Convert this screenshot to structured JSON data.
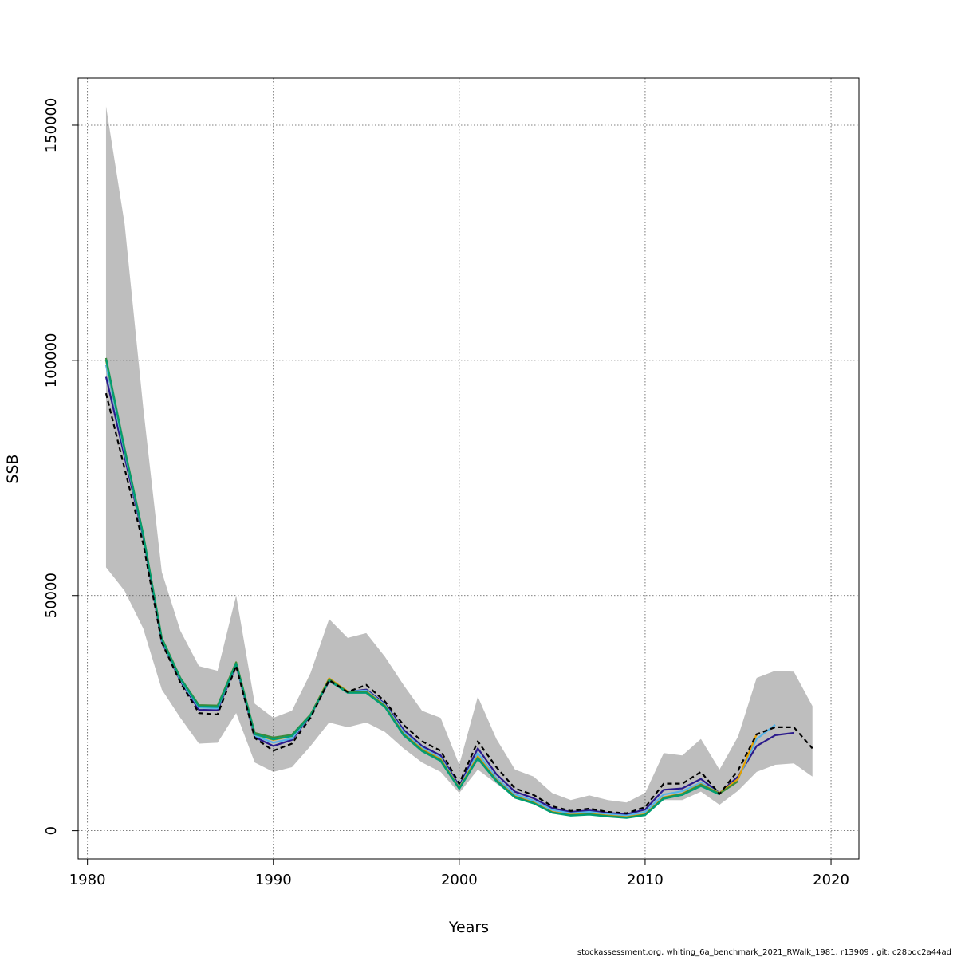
{
  "chart_data": {
    "type": "line",
    "title": "",
    "xlabel": "Years",
    "ylabel": "SSB",
    "xlim": [
      1979.5,
      2021.5
    ],
    "ylim": [
      -6000,
      160000
    ],
    "grid": true,
    "x_ticks": [
      1980,
      1990,
      2000,
      2010,
      2020
    ],
    "y_ticks": [
      0,
      50000,
      100000,
      150000
    ],
    "x_tick_labels": [
      "1980",
      "1990",
      "2000",
      "2010",
      "2020"
    ],
    "y_tick_labels": [
      "0",
      "50000",
      "100000",
      "150000"
    ],
    "footer": "stockassessment.org, whiting_6a_benchmark_2021_RWalk_1981, r13909 , git: c28bdc2a44ad",
    "colors": {
      "band": "#bebebe",
      "estimate": "#000000",
      "grid": "#555555",
      "retro": [
        "#2b1a8c",
        "#56b4e9",
        "#e69f00",
        "#3c8c3c",
        "#009e73"
      ]
    },
    "confidence_band": {
      "x": [
        1981,
        1982,
        1983,
        1984,
        1985,
        1986,
        1987,
        1988,
        1989,
        1990,
        1991,
        1992,
        1993,
        1994,
        1995,
        1996,
        1997,
        1998,
        1999,
        2000,
        2001,
        2002,
        2003,
        2004,
        2005,
        2006,
        2007,
        2008,
        2009,
        2010,
        2011,
        2012,
        2013,
        2014,
        2015,
        2016,
        2017,
        2018,
        2019
      ],
      "lower": [
        56000,
        51000,
        43000,
        30000,
        24000,
        18500,
        18700,
        25000,
        14500,
        12500,
        13500,
        18000,
        23000,
        22000,
        23000,
        21000,
        17500,
        14500,
        12500,
        8000,
        13000,
        10000,
        7000,
        6000,
        4500,
        3800,
        4000,
        3500,
        3200,
        3500,
        6500,
        6500,
        8300,
        5500,
        8500,
        12500,
        14000,
        14300,
        11500
      ],
      "upper": [
        154000,
        129000,
        90000,
        55000,
        42500,
        35000,
        34000,
        50000,
        27000,
        24000,
        25500,
        33500,
        45000,
        41000,
        42000,
        37000,
        31000,
        25500,
        24000,
        14000,
        28500,
        19500,
        13000,
        11500,
        8000,
        6500,
        7500,
        6500,
        6000,
        8000,
        16500,
        16000,
        19500,
        13000,
        20000,
        32500,
        34000,
        33800,
        26500
      ]
    },
    "series": [
      {
        "x": [
          1981,
          1982,
          1983,
          1984,
          1985,
          1986,
          1987,
          1988,
          1989,
          1990,
          1991,
          1992,
          1993,
          1994,
          1995,
          1996,
          1997,
          1998,
          1999,
          2000,
          2001,
          2002,
          2003,
          2004,
          2005,
          2006,
          2007,
          2008,
          2009,
          2010,
          2011,
          2012,
          2013,
          2014,
          2015,
          2016,
          2017,
          2018,
          2019
        ],
        "values": [
          93000,
          77000,
          61000,
          40000,
          31500,
          25000,
          24700,
          35000,
          19700,
          17000,
          18500,
          24000,
          32000,
          29500,
          31000,
          27500,
          22500,
          19000,
          17000,
          10000,
          19000,
          13500,
          9000,
          7600,
          5200,
          4200,
          4700,
          4000,
          3700,
          5000,
          10000,
          10000,
          12500,
          7800,
          12800,
          20500,
          22000,
          22000,
          17500
        ],
        "dash": "dashed",
        "color": "#000000"
      },
      {
        "x": [
          1981,
          1982,
          1983,
          1984,
          1985,
          1986,
          1987,
          1988,
          1989,
          1990,
          1991,
          1992,
          1993,
          1994,
          1995,
          1996,
          1997,
          1998,
          1999,
          2000,
          2001,
          2002,
          2003,
          2004,
          2005,
          2006,
          2007,
          2008,
          2009,
          2010,
          2011,
          2012,
          2013,
          2014,
          2015,
          2016,
          2017,
          2018
        ],
        "values": [
          96500,
          79500,
          62500,
          40200,
          31800,
          25700,
          25600,
          35200,
          19900,
          18000,
          19300,
          24500,
          31800,
          29500,
          30000,
          27000,
          21500,
          18000,
          16000,
          9500,
          17500,
          12000,
          8300,
          6900,
          4800,
          4000,
          4300,
          3800,
          3500,
          4500,
          8700,
          9000,
          11000,
          8000,
          11500,
          18000,
          20300,
          20800
        ],
        "dash": "solid",
        "color": "#2b1a8c"
      },
      {
        "x": [
          1981,
          1982,
          1983,
          1984,
          1985,
          1986,
          1987,
          1988,
          1989,
          1990,
          1991,
          1992,
          1993,
          1994,
          1995,
          1996,
          1997,
          1998,
          1999,
          2000,
          2001,
          2002,
          2003,
          2004,
          2005,
          2006,
          2007,
          2008,
          2009,
          2010,
          2011,
          2012,
          2013,
          2014,
          2015,
          2016,
          2017
        ],
        "values": [
          99000,
          80500,
          62800,
          40500,
          32000,
          26200,
          26000,
          35400,
          20200,
          18700,
          19600,
          24600,
          32000,
          29600,
          29800,
          26800,
          21000,
          17600,
          15500,
          9200,
          16500,
          11200,
          7700,
          6400,
          4400,
          3700,
          4000,
          3500,
          3200,
          4000,
          7700,
          8400,
          10200,
          8000,
          11000,
          19500,
          22500
        ],
        "dash": "solid",
        "color": "#56b4e9"
      },
      {
        "x": [
          1981,
          1982,
          1983,
          1984,
          1985,
          1986,
          1987,
          1988,
          1989,
          1990,
          1991,
          1992,
          1993,
          1994,
          1995,
          1996,
          1997,
          1998,
          1999,
          2000,
          2001,
          2002,
          2003,
          2004,
          2005,
          2006,
          2007,
          2008,
          2009,
          2010,
          2011,
          2012,
          2013,
          2014,
          2015,
          2016
        ],
        "values": [
          100000,
          81000,
          63000,
          40800,
          32300,
          26500,
          26400,
          35800,
          20500,
          19300,
          20100,
          24600,
          32400,
          29600,
          29600,
          26600,
          20600,
          17300,
          15200,
          9100,
          15800,
          10800,
          7300,
          6000,
          4000,
          3400,
          3600,
          3200,
          2900,
          3500,
          7100,
          7900,
          9900,
          8000,
          11000,
          20500
        ],
        "dash": "solid",
        "color": "#e69f00"
      },
      {
        "x": [
          1981,
          1982,
          1983,
          1984,
          1985,
          1986,
          1987,
          1988,
          1989,
          1990,
          1991,
          1992,
          1993,
          1994,
          1995,
          1996,
          1997,
          1998,
          1999,
          2000,
          2001,
          2002,
          2003,
          2004,
          2005,
          2006,
          2007,
          2008,
          2009,
          2010,
          2011,
          2012,
          2013,
          2014,
          2015
        ],
        "values": [
          100500,
          81300,
          63100,
          41000,
          32500,
          26700,
          26600,
          35800,
          20800,
          19800,
          20400,
          24700,
          32200,
          29500,
          29500,
          26500,
          20500,
          17100,
          15000,
          9000,
          15500,
          10700,
          7200,
          5900,
          3900,
          3300,
          3500,
          3100,
          2800,
          3400,
          7000,
          7800,
          9800,
          7900,
          10500
        ],
        "dash": "solid",
        "color": "#3c8c3c"
      },
      {
        "x": [
          1981,
          1982,
          1983,
          1984,
          1985,
          1986,
          1987,
          1988,
          1989,
          1990,
          1991,
          1992,
          1993,
          1994,
          1995,
          1996,
          1997,
          1998,
          1999,
          2000,
          2001,
          2002,
          2003,
          2004,
          2005,
          2006,
          2007,
          2008,
          2009,
          2010,
          2011,
          2012,
          2013,
          2014
        ],
        "values": [
          100200,
          81000,
          62900,
          40700,
          32300,
          26400,
          26300,
          35500,
          20500,
          19400,
          20100,
          24500,
          31900,
          29300,
          29300,
          26300,
          20300,
          16900,
          14800,
          8900,
          15300,
          10500,
          7000,
          5800,
          3800,
          3200,
          3400,
          3000,
          2700,
          3300,
          6800,
          7600,
          9500,
          7700
        ],
        "dash": "solid",
        "color": "#009e73"
      }
    ]
  }
}
